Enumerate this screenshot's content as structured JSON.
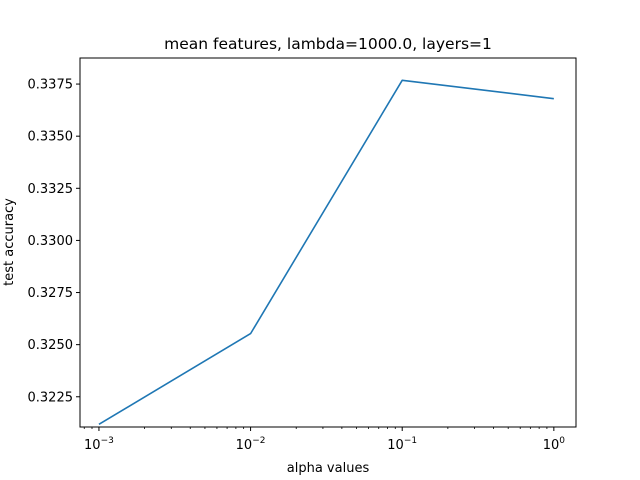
{
  "chart_data": {
    "type": "line",
    "title": "mean features, lambda=1000.0, layers=1",
    "xlabel": "alpha values",
    "ylabel": "test accuracy",
    "xscale": "log",
    "xlim": [
      0.00075,
      1.4
    ],
    "ylim": [
      0.32105,
      0.33875
    ],
    "grid": false,
    "legend": "none",
    "x": [
      0.001,
      0.01,
      0.1,
      1.0
    ],
    "series": [
      {
        "values": [
          0.32118,
          0.32553,
          0.33768,
          0.3368
        ],
        "color": "#1f77b4"
      }
    ],
    "xticks": [
      {
        "value": 0.001,
        "base": "10",
        "exp": "−3"
      },
      {
        "value": 0.01,
        "base": "10",
        "exp": "−2"
      },
      {
        "value": 0.1,
        "base": "10",
        "exp": "−1"
      },
      {
        "value": 1.0,
        "base": "10",
        "exp": "0"
      }
    ],
    "yticks": [
      {
        "value": 0.3225,
        "label": "0.3225"
      },
      {
        "value": 0.325,
        "label": "0.3250"
      },
      {
        "value": 0.3275,
        "label": "0.3275"
      },
      {
        "value": 0.33,
        "label": "0.3300"
      },
      {
        "value": 0.3325,
        "label": "0.3325"
      },
      {
        "value": 0.335,
        "label": "0.3350"
      },
      {
        "value": 0.3375,
        "label": "0.3375"
      }
    ]
  }
}
